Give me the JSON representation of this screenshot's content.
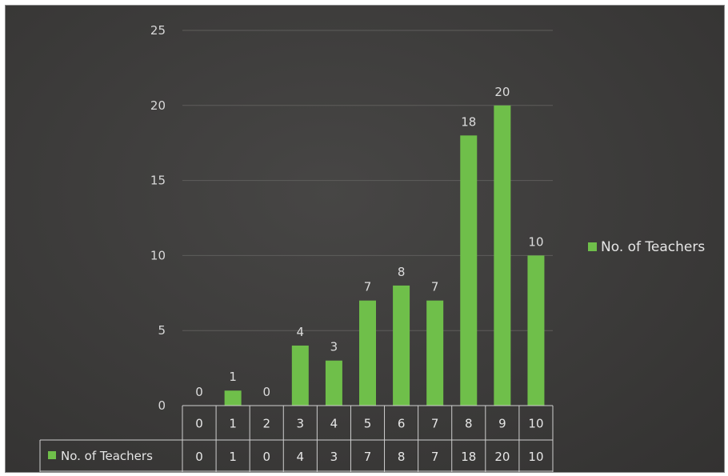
{
  "chart_data": {
    "type": "bar",
    "categories": [
      "0",
      "1",
      "2",
      "3",
      "4",
      "5",
      "6",
      "7",
      "8",
      "9",
      "10"
    ],
    "series": [
      {
        "name": "No. of Teachers",
        "values": [
          0,
          1,
          0,
          4,
          3,
          7,
          8,
          7,
          18,
          20,
          10
        ]
      }
    ],
    "title": "",
    "xlabel": "",
    "ylabel": "",
    "ylim": [
      0,
      25
    ],
    "yticks": [
      0,
      5,
      10,
      15,
      20,
      25
    ],
    "grid": true,
    "data_labels": true,
    "data_table": true,
    "legend_position": "right",
    "bar_color": "#6fbf4a",
    "background_color": "#3f3e3d"
  }
}
